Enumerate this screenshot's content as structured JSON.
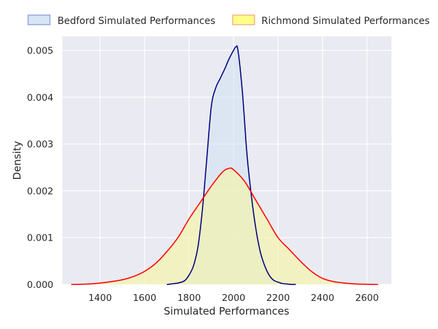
{
  "chart_data": {
    "type": "area",
    "title": "",
    "xlabel": "Simulated Performances",
    "ylabel": "Density",
    "xlim": [
      1230,
      2710
    ],
    "ylim": [
      0,
      0.0053
    ],
    "xticks": [
      "1400",
      "1600",
      "1800",
      "2000",
      "2200",
      "2400",
      "2600"
    ],
    "yticks": [
      "0.000",
      "0.001",
      "0.002",
      "0.003",
      "0.004",
      "0.005"
    ],
    "grid": true,
    "legend_position": "top",
    "series": [
      {
        "name": "Bedford Simulated Performances",
        "line_color": "#000080",
        "fill_color": "#cfe2f3",
        "x": [
          1700,
          1750,
          1780,
          1800,
          1820,
          1840,
          1860,
          1880,
          1900,
          1920,
          1940,
          1960,
          1980,
          2000,
          2010,
          2020,
          2040,
          2060,
          2080,
          2100,
          2120,
          2140,
          2160,
          2180,
          2200,
          2220,
          2250,
          2280
        ],
        "y": [
          0.0,
          3e-05,
          8e-05,
          0.0002,
          0.0004,
          0.0008,
          0.0016,
          0.0027,
          0.0038,
          0.0042,
          0.0044,
          0.0046,
          0.00482,
          0.005,
          0.00507,
          0.005,
          0.0041,
          0.0028,
          0.0019,
          0.0012,
          0.0007,
          0.0004,
          0.0002,
          9e-05,
          5e-05,
          2e-05,
          5e-06,
          0.0
        ]
      },
      {
        "name": "Richmond Simulated Performances",
        "line_color": "#ff0000",
        "fill_color": "#f5f5a0",
        "x": [
          1270,
          1350,
          1400,
          1450,
          1500,
          1550,
          1600,
          1650,
          1700,
          1750,
          1800,
          1850,
          1900,
          1950,
          1980,
          2000,
          2050,
          2100,
          2150,
          2200,
          2250,
          2300,
          2350,
          2400,
          2450,
          2500,
          2550,
          2650
        ],
        "y": [
          0.0,
          1e-05,
          3e-05,
          6e-05,
          0.0001,
          0.00017,
          0.00028,
          0.00045,
          0.0007,
          0.001,
          0.0014,
          0.00175,
          0.0021,
          0.0024,
          0.00248,
          0.00245,
          0.0022,
          0.0018,
          0.0014,
          0.001,
          0.00075,
          0.0005,
          0.00028,
          0.00013,
          6e-05,
          3e-05,
          1e-05,
          0.0
        ]
      }
    ]
  }
}
